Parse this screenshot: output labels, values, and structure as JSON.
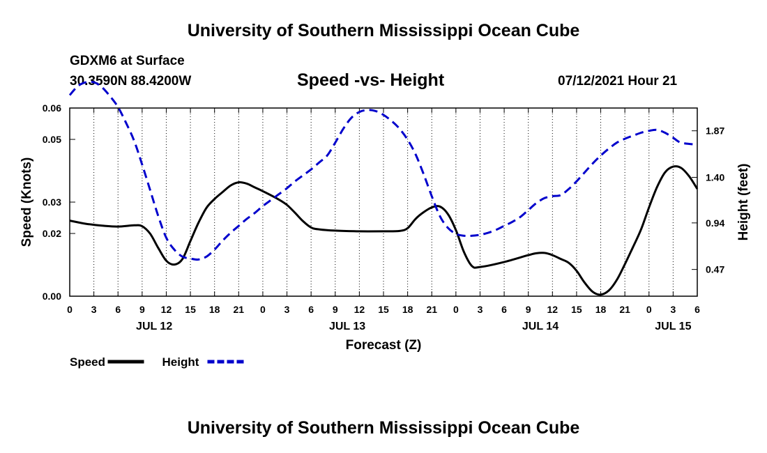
{
  "header": {
    "top_title": "University of Southern Mississippi Ocean Cube",
    "station": "GDXM6 at Surface",
    "coords": "30.3590N  88.4200W",
    "chart_title": "Speed -vs- Height",
    "datetime": "07/12/2021 Hour 21"
  },
  "footer": {
    "bottom_title": "University of Southern Mississippi Ocean Cube"
  },
  "chart_data": {
    "type": "line",
    "title": "Speed -vs- Height",
    "xlabel": "Forecast (Z)",
    "ylabel": "Speed (Knots)",
    "y2label": "Height (feet)",
    "x_range_hours": [
      0,
      78
    ],
    "x_tick_step_hours": 3,
    "x_tick_labels": [
      "0",
      "3",
      "6",
      "9",
      "12",
      "15",
      "18",
      "21",
      "0",
      "3",
      "6",
      "9",
      "12",
      "15",
      "18",
      "21",
      "0",
      "3",
      "6",
      "9",
      "12",
      "15",
      "18",
      "21",
      "0",
      "3",
      "6"
    ],
    "date_labels": [
      {
        "hour": 10.5,
        "label": "JUL 12"
      },
      {
        "hour": 34.5,
        "label": "JUL 13"
      },
      {
        "hour": 58.5,
        "label": "JUL 14"
      },
      {
        "hour": 75,
        "label": "JUL 15"
      }
    ],
    "ylim": [
      0,
      0.06
    ],
    "y_ticks": [
      0.0,
      0.02,
      0.03,
      0.05,
      0.06
    ],
    "y_tick_labels": [
      "0.00",
      "0.02",
      "0.03",
      "0.05",
      "0.06"
    ],
    "y2lim": [
      0.2,
      2.1
    ],
    "y2_ticks": [
      0.47,
      0.94,
      1.4,
      1.87
    ],
    "y2_tick_labels": [
      "0.47",
      "0.94",
      "1.40",
      "1.87"
    ],
    "series": [
      {
        "name": "Speed",
        "axis": "left",
        "color": "#000000",
        "dash": "solid",
        "points": [
          [
            0,
            0.0241
          ],
          [
            2,
            0.0231
          ],
          [
            4,
            0.0225
          ],
          [
            6,
            0.0222
          ],
          [
            8,
            0.0226
          ],
          [
            9,
            0.0223
          ],
          [
            10,
            0.0199
          ],
          [
            11,
            0.0154
          ],
          [
            12,
            0.0113
          ],
          [
            13,
            0.0101
          ],
          [
            14,
            0.0118
          ],
          [
            15,
            0.0176
          ],
          [
            16,
            0.0234
          ],
          [
            17,
            0.0282
          ],
          [
            18,
            0.031
          ],
          [
            19,
            0.0332
          ],
          [
            20,
            0.0353
          ],
          [
            21,
            0.0363
          ],
          [
            22,
            0.0359
          ],
          [
            23,
            0.0347
          ],
          [
            24,
            0.0335
          ],
          [
            26,
            0.0308
          ],
          [
            27,
            0.0291
          ],
          [
            28,
            0.0266
          ],
          [
            29,
            0.0239
          ],
          [
            30,
            0.0219
          ],
          [
            31,
            0.0213
          ],
          [
            33,
            0.0209
          ],
          [
            36,
            0.0207
          ],
          [
            39,
            0.0207
          ],
          [
            41,
            0.0208
          ],
          [
            42,
            0.0217
          ],
          [
            43,
            0.0247
          ],
          [
            44,
            0.0268
          ],
          [
            45,
            0.0283
          ],
          [
            46,
            0.0286
          ],
          [
            47,
            0.0262
          ],
          [
            48,
            0.0211
          ],
          [
            49,
            0.0141
          ],
          [
            50,
            0.0096
          ],
          [
            51,
            0.0093
          ],
          [
            54,
            0.0109
          ],
          [
            57,
            0.0131
          ],
          [
            58,
            0.0137
          ],
          [
            59,
            0.0138
          ],
          [
            60,
            0.0131
          ],
          [
            61,
            0.0119
          ],
          [
            62,
            0.0107
          ],
          [
            63,
            0.0081
          ],
          [
            64,
            0.0043
          ],
          [
            65,
            0.0014
          ],
          [
            66,
            0.0005
          ],
          [
            67,
            0.0018
          ],
          [
            68,
            0.0052
          ],
          [
            69,
            0.0102
          ],
          [
            70,
            0.0156
          ],
          [
            71,
            0.0212
          ],
          [
            72,
            0.0283
          ],
          [
            73,
            0.0348
          ],
          [
            74,
            0.0395
          ],
          [
            75,
            0.0413
          ],
          [
            76,
            0.0409
          ],
          [
            77,
            0.0382
          ],
          [
            78,
            0.0342
          ]
        ]
      },
      {
        "name": "Height",
        "axis": "right",
        "color": "#0000cc",
        "dash": "dashed",
        "points": [
          [
            0,
            2.23
          ],
          [
            1,
            2.32
          ],
          [
            2,
            2.36
          ],
          [
            3,
            2.36
          ],
          [
            4,
            2.31
          ],
          [
            5,
            2.22
          ],
          [
            6,
            2.11
          ],
          [
            7,
            1.95
          ],
          [
            8,
            1.77
          ],
          [
            9,
            1.53
          ],
          [
            10,
            1.27
          ],
          [
            11,
            1.01
          ],
          [
            12,
            0.79
          ],
          [
            13,
            0.67
          ],
          [
            14,
            0.6
          ],
          [
            15,
            0.58
          ],
          [
            16,
            0.57
          ],
          [
            17,
            0.6
          ],
          [
            18,
            0.67
          ],
          [
            19,
            0.76
          ],
          [
            20,
            0.84
          ],
          [
            21,
            0.91
          ],
          [
            22,
            0.98
          ],
          [
            23,
            1.04
          ],
          [
            24,
            1.11
          ],
          [
            25,
            1.17
          ],
          [
            26,
            1.23
          ],
          [
            27,
            1.29
          ],
          [
            28,
            1.36
          ],
          [
            29,
            1.42
          ],
          [
            30,
            1.48
          ],
          [
            31,
            1.55
          ],
          [
            32,
            1.62
          ],
          [
            33,
            1.75
          ],
          [
            34,
            1.89
          ],
          [
            35,
            2.0
          ],
          [
            36,
            2.06
          ],
          [
            37,
            2.08
          ],
          [
            38,
            2.07
          ],
          [
            39,
            2.03
          ],
          [
            40,
            1.97
          ],
          [
            41,
            1.89
          ],
          [
            42,
            1.78
          ],
          [
            43,
            1.63
          ],
          [
            44,
            1.43
          ],
          [
            45,
            1.21
          ],
          [
            46,
            1.01
          ],
          [
            47,
            0.89
          ],
          [
            48,
            0.83
          ],
          [
            49,
            0.81
          ],
          [
            50,
            0.81
          ],
          [
            51,
            0.82
          ],
          [
            52,
            0.84
          ],
          [
            53,
            0.87
          ],
          [
            54,
            0.91
          ],
          [
            55,
            0.95
          ],
          [
            56,
            1.0
          ],
          [
            57,
            1.07
          ],
          [
            58,
            1.14
          ],
          [
            59,
            1.19
          ],
          [
            60,
            1.21
          ],
          [
            61,
            1.22
          ],
          [
            62,
            1.28
          ],
          [
            63,
            1.36
          ],
          [
            64,
            1.45
          ],
          [
            65,
            1.54
          ],
          [
            66,
            1.62
          ],
          [
            67,
            1.69
          ],
          [
            68,
            1.75
          ],
          [
            69,
            1.79
          ],
          [
            70,
            1.82
          ],
          [
            71,
            1.85
          ],
          [
            72,
            1.87
          ],
          [
            73,
            1.88
          ],
          [
            74,
            1.85
          ],
          [
            75,
            1.8
          ],
          [
            76,
            1.75
          ],
          [
            78,
            1.73
          ]
        ]
      }
    ],
    "legend": [
      {
        "label": "Speed",
        "color": "#000000",
        "dash": "solid"
      },
      {
        "label": "Height",
        "color": "#0000cc",
        "dash": "dashed"
      }
    ]
  }
}
